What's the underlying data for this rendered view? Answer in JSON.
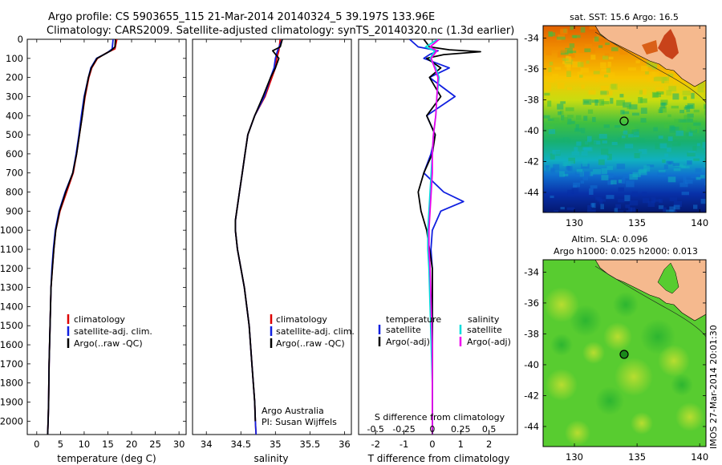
{
  "header": {
    "line1": "Argo profile: CS 5903655_115 21-Mar-2014 20140324_5 39.197S 133.96E",
    "line2": "Climatology: CARS2009. Satellite-adjusted climatology: synTS_20140320.nc (1.3d earlier)"
  },
  "colors": {
    "climatology": "#dd0000",
    "satellite": "#1020e0",
    "argo": "#000000",
    "satellite_salinity": "#00dddd",
    "argo_salinity": "#ee00ee",
    "land": "#f5b98e"
  },
  "depth_axis": {
    "ticks": [
      "0",
      "100",
      "200",
      "300",
      "400",
      "500",
      "600",
      "700",
      "800",
      "900",
      "1000",
      "1100",
      "1200",
      "1300",
      "1400",
      "1500",
      "1600",
      "1700",
      "1800",
      "1900",
      "2000"
    ],
    "range": [
      0,
      2070
    ]
  },
  "temperature_panel": {
    "xlabel": "temperature (deg C)",
    "xticks": [
      "0",
      "5",
      "10",
      "15",
      "20",
      "25",
      "30"
    ],
    "xlim": [
      -2,
      31.5
    ],
    "legend": [
      "climatology",
      "satellite-adj. clim.",
      "Argo(..raw -QC)"
    ]
  },
  "salinity_panel": {
    "xlabel": "salinity",
    "xticks": [
      "34",
      "34.5",
      "35",
      "35.5",
      "36"
    ],
    "xlim": [
      33.8,
      36.1
    ],
    "legend": [
      "climatology",
      "satellite-adj. clim.",
      "Argo(..raw -QC)"
    ],
    "note1": "Argo Australia",
    "note2": "PI: Susan Wijffels"
  },
  "difference_panel": {
    "legend_temp_title": "temperature",
    "legend_sal_title": "salinity",
    "legend_items": [
      "satellite",
      "Argo(-adj)",
      "satellite",
      "Argo(-adj)"
    ],
    "s_title": "S difference from climatology",
    "s_ticks": [
      "-0.5",
      "-0.25",
      "0",
      "0.25",
      "0.5"
    ],
    "t_ticks": [
      "-2",
      "-1",
      "0",
      "1",
      "2"
    ],
    "xlabel": "T difference from climatology",
    "xlim": [
      -2.6,
      3.0
    ]
  },
  "sst_map": {
    "title": "sat. SST: 15.6  Argo: 16.5",
    "yticks": [
      "-34",
      "-36",
      "-38",
      "-40",
      "-42",
      "-44"
    ],
    "xticks": [
      "130",
      "135",
      "140"
    ]
  },
  "sla_map": {
    "title1": "Altim. SLA: 0.096",
    "title2": "Argo h1000: 0.025 h2000: 0.013",
    "yticks": [
      "-34",
      "-36",
      "-38",
      "-40",
      "-42",
      "-44"
    ],
    "xticks": [
      "130",
      "135",
      "140"
    ]
  },
  "credit": "IMOS 27-Mar-2014 20:01:30",
  "chart_data": [
    {
      "type": "line",
      "xlabel": "temperature (deg C)",
      "ylabel": "",
      "ylim": [
        0,
        2070
      ],
      "xlim": [
        -2,
        31.5
      ],
      "series": [
        {
          "name": "climatology",
          "depth": [
            0,
            50,
            70,
            100,
            150,
            200,
            300,
            400,
            500,
            600,
            700,
            800,
            900,
            1000,
            1100,
            1200,
            1300,
            1500,
            1700,
            1900,
            2000,
            2070
          ],
          "values": [
            16.9,
            16.5,
            14.8,
            12.8,
            11.6,
            11.0,
            10.2,
            9.6,
            9.0,
            8.4,
            7.7,
            6.3,
            4.9,
            4.0,
            3.6,
            3.3,
            3.0,
            2.8,
            2.6,
            2.5,
            2.4,
            2.3
          ]
        },
        {
          "name": "satellite-adj. clim.",
          "depth": [
            0,
            50,
            70,
            100,
            150,
            200,
            300,
            400,
            500,
            600,
            700,
            800,
            900,
            1000,
            1100,
            1200,
            1300,
            1500,
            1700,
            1900,
            2000,
            2070
          ],
          "values": [
            16.1,
            15.9,
            14.9,
            12.6,
            11.4,
            10.9,
            10.0,
            9.4,
            8.9,
            8.3,
            7.6,
            6.0,
            4.7,
            3.9,
            3.5,
            3.2,
            3.0,
            2.8,
            2.6,
            2.5,
            2.4,
            2.3
          ]
        },
        {
          "name": "Argo(..raw -QC)",
          "depth": [
            0,
            40,
            60,
            100,
            150,
            200,
            300,
            400,
            500,
            600,
            700,
            800,
            900,
            1000,
            1100,
            1200,
            1300,
            1500,
            1700,
            1900,
            2000,
            2070
          ],
          "values": [
            16.6,
            16.5,
            15.6,
            12.7,
            11.5,
            10.9,
            10.1,
            9.6,
            9.0,
            8.4,
            7.6,
            6.1,
            4.8,
            4.0,
            3.6,
            3.3,
            3.0,
            2.8,
            2.6,
            2.5,
            2.4,
            2.3
          ]
        }
      ]
    },
    {
      "type": "line",
      "xlabel": "salinity",
      "ylabel": "",
      "ylim": [
        0,
        2070
      ],
      "xlim": [
        33.8,
        36.1
      ],
      "series": [
        {
          "name": "climatology",
          "depth": [
            0,
            60,
            100,
            150,
            200,
            300,
            400,
            500,
            600,
            700,
            800,
            900,
            950,
            1000,
            1100,
            1200,
            1300,
            1500,
            1700,
            1900,
            2000,
            2070
          ],
          "values": [
            35.07,
            35.05,
            35.02,
            35.0,
            34.95,
            34.85,
            34.7,
            34.6,
            34.56,
            34.52,
            34.48,
            34.44,
            34.42,
            34.42,
            34.45,
            34.5,
            34.55,
            34.62,
            34.66,
            34.7,
            34.71,
            34.72
          ]
        },
        {
          "name": "satellite-adj. clim.",
          "depth": [
            0,
            60,
            100,
            150,
            200,
            300,
            400,
            500,
            600,
            700,
            800,
            900,
            950,
            1000,
            1100,
            1200,
            1300,
            1500,
            1700,
            1900,
            2000,
            2070
          ],
          "values": [
            35.1,
            35.03,
            35.0,
            34.98,
            34.93,
            34.84,
            34.7,
            34.6,
            34.56,
            34.52,
            34.48,
            34.44,
            34.42,
            34.42,
            34.45,
            34.5,
            34.55,
            34.62,
            34.66,
            34.7,
            34.71,
            34.72
          ]
        },
        {
          "name": "Argo(..raw -QC)",
          "depth": [
            0,
            40,
            60,
            100,
            150,
            200,
            300,
            400,
            500,
            600,
            700,
            800,
            900,
            950,
            1000,
            1100,
            1200,
            1300,
            1500,
            1700,
            1900,
            2000
          ],
          "values": [
            35.1,
            35.07,
            34.96,
            35.05,
            35.0,
            34.93,
            34.82,
            34.7,
            34.6,
            34.56,
            34.52,
            34.48,
            34.44,
            34.42,
            34.42,
            34.45,
            34.5,
            34.55,
            34.62,
            34.66,
            34.7,
            34.71
          ]
        }
      ]
    },
    {
      "type": "line",
      "xlabel": "T difference from climatology",
      "ylabel": "",
      "ylim": [
        0,
        2070
      ],
      "xlim": [
        -2.6,
        3.0
      ],
      "series": [
        {
          "name": "temperature satellite",
          "depth": [
            0,
            40,
            60,
            80,
            100,
            150,
            200,
            300,
            400,
            500,
            600,
            700,
            800,
            850,
            900,
            1000,
            1100,
            1200,
            1400,
            1600,
            1800,
            2000,
            2070
          ],
          "values": [
            -0.8,
            -0.5,
            0.2,
            -0.1,
            -0.3,
            0.6,
            -0.1,
            0.8,
            -0.2,
            0.1,
            -0.05,
            -0.3,
            0.4,
            1.1,
            0.3,
            0.0,
            -0.05,
            0.0,
            0.0,
            0.0,
            0.0,
            0.0,
            0.0
          ]
        },
        {
          "name": "temperature Argo(-adj)",
          "depth": [
            0,
            40,
            55,
            65,
            80,
            100,
            150,
            200,
            300,
            400,
            500,
            600,
            700,
            800,
            900,
            1000,
            1100,
            1200,
            1400,
            1600,
            1800,
            2000,
            2070
          ],
          "values": [
            -0.3,
            -0.1,
            0.6,
            1.7,
            0.4,
            -0.2,
            0.3,
            -0.1,
            0.3,
            -0.2,
            0.1,
            0.0,
            -0.3,
            -0.5,
            -0.4,
            -0.2,
            -0.1,
            0.0,
            0.0,
            0.0,
            0.0,
            0.0,
            0.0
          ]
        },
        {
          "name": "salinity satellite",
          "depth": [
            0,
            40,
            60,
            100,
            150,
            200,
            300,
            400,
            500,
            600,
            700,
            800,
            900,
            1000,
            1100,
            1200,
            1400,
            1600,
            1800,
            2000,
            2070
          ],
          "values": [
            0.05,
            -0.06,
            0.02,
            -0.02,
            0.03,
            0.06,
            0.04,
            0.03,
            0.01,
            0.0,
            -0.01,
            -0.02,
            -0.03,
            -0.04,
            -0.04,
            -0.03,
            -0.02,
            -0.01,
            0.0,
            0.0,
            0.0
          ]
        },
        {
          "name": "salinity Argo(-adj)",
          "depth": [
            0,
            40,
            60,
            100,
            150,
            200,
            300,
            400,
            500,
            600,
            700,
            800,
            900,
            1000,
            1100,
            1200,
            1400,
            1600,
            1800,
            2000,
            2070
          ],
          "values": [
            0.06,
            -0.02,
            0.04,
            -0.01,
            0.02,
            0.05,
            0.04,
            0.03,
            0.01,
            0.0,
            0.0,
            -0.01,
            -0.02,
            -0.03,
            -0.03,
            -0.02,
            -0.01,
            0.0,
            0.0,
            0.0,
            0.0
          ]
        }
      ]
    },
    {
      "type": "heatmap",
      "title": "sat. SST: 15.6  Argo: 16.5",
      "xlim": [
        127.5,
        140.5
      ],
      "ylim": [
        -45.3,
        -33.2
      ],
      "argo_position": [
        133.96,
        -39.197
      ]
    },
    {
      "type": "heatmap",
      "title": "Altim. SLA: 0.096",
      "xlim": [
        127.5,
        140.5
      ],
      "ylim": [
        -45.3,
        -33.2
      ],
      "argo_position": [
        133.96,
        -39.197
      ]
    }
  ]
}
